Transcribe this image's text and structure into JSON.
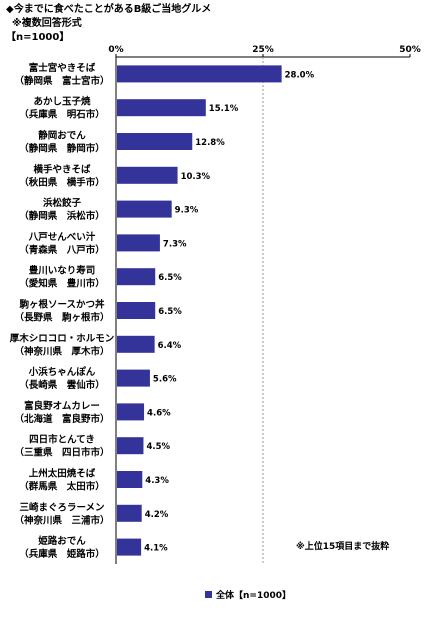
{
  "header": {
    "title": "◆今までに食べたことがあるB級ご当地グルメ",
    "subtitle": "※複数回答形式",
    "sample": "【n=1000】"
  },
  "note": "※上位15項目まで抜粋",
  "colors": {
    "bar": "#333399",
    "grid": "#999999"
  },
  "chart_data": {
    "type": "bar",
    "orientation": "horizontal",
    "title": "今までに食べたことがあるB級ご当地グルメ",
    "xlim": [
      0,
      50
    ],
    "xticks": [
      "0%",
      "25%",
      "50%"
    ],
    "grid": "dashed line at 25%",
    "legend_position": "bottom",
    "categories": [
      [
        "富士宮やきそば",
        "（静岡県　富士宮市）"
      ],
      [
        "あかし玉子焼",
        "（兵庫県　明石市）"
      ],
      [
        "静岡おでん",
        "（静岡県　静岡市）"
      ],
      [
        "横手やきそば",
        "（秋田県　横手市）"
      ],
      [
        "浜松餃子",
        "（静岡県　浜松市）"
      ],
      [
        "八戸せんべい汁",
        "（青森県　八戸市）"
      ],
      [
        "豊川いなり寿司",
        "（愛知県　豊川市）"
      ],
      [
        "駒ヶ根ソースかつ丼",
        "（長野県　駒ヶ根市）"
      ],
      [
        "厚木シロコロ・ホルモン",
        "（神奈川県　厚木市）"
      ],
      [
        "小浜ちゃんぽん",
        "（長崎県　雲仙市）"
      ],
      [
        "富良野オムカレー",
        "（北海道　富良野市）"
      ],
      [
        "四日市とんてき",
        "（三重県　四日市市）"
      ],
      [
        "上州太田焼そば",
        "（群馬県　太田市）"
      ],
      [
        "三崎まぐろラーメン",
        "（神奈川県　三浦市）"
      ],
      [
        "姫路おでん",
        "（兵庫県　姫路市）"
      ]
    ],
    "series": [
      {
        "name": "全体【n=1000】",
        "values": [
          28.0,
          15.1,
          12.8,
          10.3,
          9.3,
          7.3,
          6.5,
          6.5,
          6.4,
          5.6,
          4.6,
          4.5,
          4.3,
          4.2,
          4.1
        ],
        "labels": [
          "28.0%",
          "15.1%",
          "12.8%",
          "10.3%",
          "9.3%",
          "7.3%",
          "6.5%",
          "6.5%",
          "6.4%",
          "5.6%",
          "4.6%",
          "4.5%",
          "4.3%",
          "4.2%",
          "4.1%"
        ]
      }
    ]
  }
}
